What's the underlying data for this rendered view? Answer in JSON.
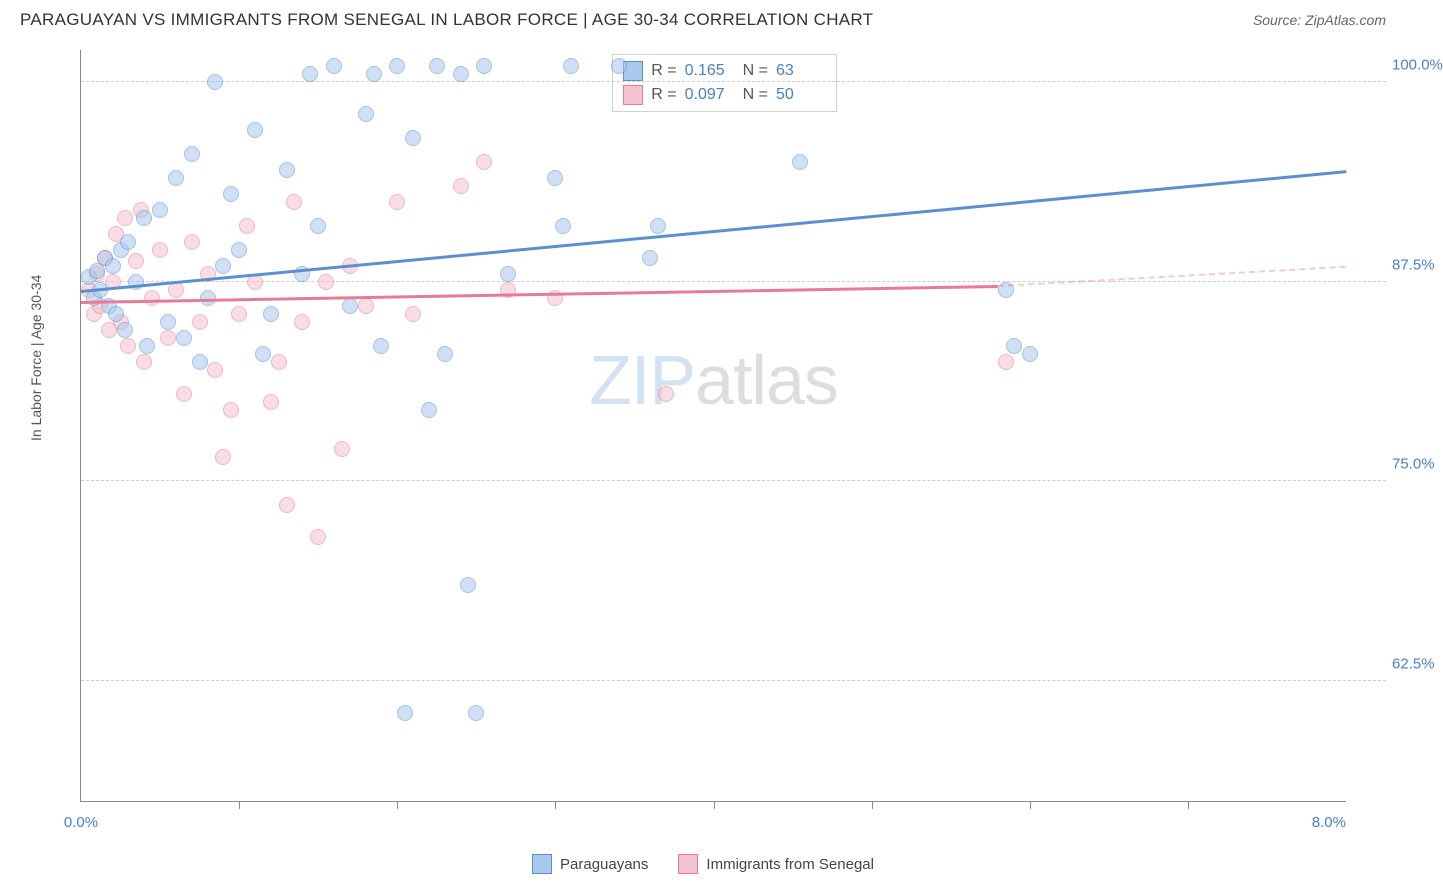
{
  "header": {
    "title": "PARAGUAYAN VS IMMIGRANTS FROM SENEGAL IN LABOR FORCE | AGE 30-34 CORRELATION CHART",
    "source": "Source: ZipAtlas.com"
  },
  "watermark": {
    "part1": "ZIP",
    "part2": "atlas"
  },
  "chart": {
    "type": "scatter",
    "xlim": [
      0.0,
      8.0
    ],
    "ylim": [
      55.0,
      102.0
    ],
    "xtick_left": "0.0%",
    "xtick_right": "8.0%",
    "xticks_minor": [
      1.0,
      2.0,
      3.0,
      4.0,
      5.0,
      6.0,
      7.0
    ],
    "yticks": [
      62.5,
      75.0,
      87.5,
      100.0
    ],
    "ytick_labels": [
      "62.5%",
      "75.0%",
      "87.5%",
      "100.0%"
    ],
    "ylabel": "In Labor Force | Age 30-34",
    "background_color": "#ffffff",
    "grid_color": "#cccccc",
    "marker_size": 16
  },
  "series": {
    "blue": {
      "name": "Paraguayans",
      "color_fill": "#a9c8ec",
      "color_stroke": "#5b8fd0",
      "R": "0.165",
      "N": "63",
      "trend": {
        "x1": 0.0,
        "y1": 87.0,
        "x2": 8.0,
        "y2": 94.5,
        "dash_after_x": 8.0
      },
      "points": [
        [
          0.05,
          87.8
        ],
        [
          0.08,
          86.5
        ],
        [
          0.1,
          88.2
        ],
        [
          0.12,
          87.0
        ],
        [
          0.15,
          89.0
        ],
        [
          0.18,
          86.0
        ],
        [
          0.2,
          88.5
        ],
        [
          0.22,
          85.5
        ],
        [
          0.25,
          89.5
        ],
        [
          0.28,
          84.5
        ],
        [
          0.3,
          90.0
        ],
        [
          0.35,
          87.5
        ],
        [
          0.4,
          91.5
        ],
        [
          0.42,
          83.5
        ],
        [
          0.5,
          92.0
        ],
        [
          0.55,
          85.0
        ],
        [
          0.6,
          94.0
        ],
        [
          0.65,
          84.0
        ],
        [
          0.7,
          95.5
        ],
        [
          0.75,
          82.5
        ],
        [
          0.8,
          86.5
        ],
        [
          0.85,
          100.0
        ],
        [
          0.9,
          88.5
        ],
        [
          0.95,
          93.0
        ],
        [
          1.0,
          89.5
        ],
        [
          1.1,
          97.0
        ],
        [
          1.15,
          83.0
        ],
        [
          1.2,
          85.5
        ],
        [
          1.3,
          94.5
        ],
        [
          1.4,
          88.0
        ],
        [
          1.45,
          100.5
        ],
        [
          1.5,
          91.0
        ],
        [
          1.6,
          101.0
        ],
        [
          1.7,
          86.0
        ],
        [
          1.8,
          98.0
        ],
        [
          1.85,
          100.5
        ],
        [
          1.9,
          83.5
        ],
        [
          2.0,
          101.0
        ],
        [
          2.05,
          60.5
        ],
        [
          2.1,
          96.5
        ],
        [
          2.2,
          79.5
        ],
        [
          2.25,
          101.0
        ],
        [
          2.3,
          83.0
        ],
        [
          2.4,
          100.5
        ],
        [
          2.45,
          68.5
        ],
        [
          2.5,
          60.5
        ],
        [
          2.55,
          101.0
        ],
        [
          2.7,
          88.0
        ],
        [
          3.0,
          94.0
        ],
        [
          3.05,
          91.0
        ],
        [
          3.1,
          101.0
        ],
        [
          3.4,
          101.0
        ],
        [
          3.6,
          89.0
        ],
        [
          3.65,
          91.0
        ],
        [
          4.55,
          95.0
        ],
        [
          5.85,
          87.0
        ],
        [
          5.9,
          83.5
        ],
        [
          6.0,
          83.0
        ]
      ]
    },
    "pink": {
      "name": "Immigrants from Senegal",
      "color_fill": "#f4c3ce",
      "color_stroke": "#e77b95",
      "R": "0.097",
      "N": "50",
      "trend": {
        "x1": 0.0,
        "y1": 86.3,
        "x2": 5.8,
        "y2": 87.3,
        "dash_after_x": 5.8,
        "dash_x2": 8.0,
        "dash_y2": 88.5
      },
      "points": [
        [
          0.05,
          87.0
        ],
        [
          0.08,
          85.5
        ],
        [
          0.1,
          88.0
        ],
        [
          0.12,
          86.0
        ],
        [
          0.15,
          89.0
        ],
        [
          0.18,
          84.5
        ],
        [
          0.2,
          87.5
        ],
        [
          0.22,
          90.5
        ],
        [
          0.25,
          85.0
        ],
        [
          0.28,
          91.5
        ],
        [
          0.3,
          83.5
        ],
        [
          0.35,
          88.8
        ],
        [
          0.38,
          92.0
        ],
        [
          0.4,
          82.5
        ],
        [
          0.45,
          86.5
        ],
        [
          0.5,
          89.5
        ],
        [
          0.55,
          84.0
        ],
        [
          0.6,
          87.0
        ],
        [
          0.65,
          80.5
        ],
        [
          0.7,
          90.0
        ],
        [
          0.75,
          85.0
        ],
        [
          0.8,
          88.0
        ],
        [
          0.85,
          82.0
        ],
        [
          0.9,
          76.5
        ],
        [
          0.95,
          79.5
        ],
        [
          1.0,
          85.5
        ],
        [
          1.05,
          91.0
        ],
        [
          1.1,
          87.5
        ],
        [
          1.2,
          80.0
        ],
        [
          1.25,
          82.5
        ],
        [
          1.3,
          73.5
        ],
        [
          1.35,
          92.5
        ],
        [
          1.4,
          85.0
        ],
        [
          1.5,
          71.5
        ],
        [
          1.55,
          87.5
        ],
        [
          1.65,
          77.0
        ],
        [
          1.7,
          88.5
        ],
        [
          1.8,
          86.0
        ],
        [
          2.0,
          92.5
        ],
        [
          2.1,
          85.5
        ],
        [
          2.4,
          93.5
        ],
        [
          2.55,
          95.0
        ],
        [
          2.7,
          87.0
        ],
        [
          3.0,
          86.5
        ],
        [
          3.7,
          80.5
        ],
        [
          5.85,
          82.5
        ]
      ]
    }
  },
  "stats_labels": {
    "R": "R =",
    "N": "N ="
  },
  "legend": {
    "series1": "Paraguayans",
    "series2": "Immigrants from Senegal"
  }
}
